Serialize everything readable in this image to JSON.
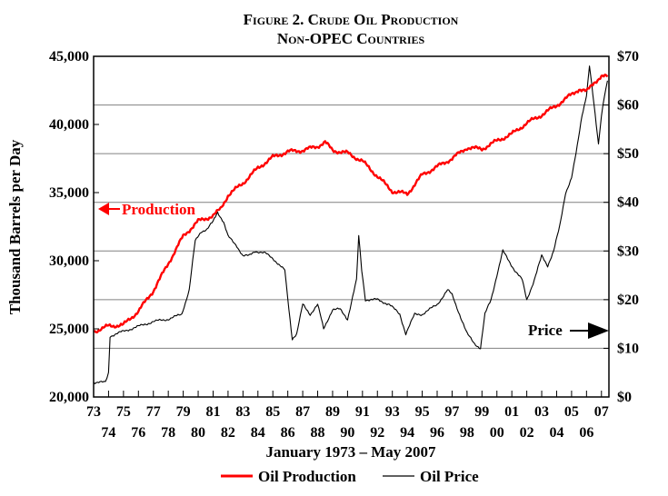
{
  "chart_data": {
    "type": "line",
    "title_line1": "Figure 2. Crude Oil Production",
    "title_line2": "Non-OPEC Countries",
    "xlabel": "January 1973 – May 2007",
    "ylabel": "Thousand Barrels per Day",
    "ylim": [
      20000,
      45000
    ],
    "y2lim": [
      0,
      70
    ],
    "xlim": [
      1973.0,
      2007.5
    ],
    "yticks": [
      "20,000",
      "25,000",
      "30,000",
      "35,000",
      "40,000",
      "45,000"
    ],
    "y2ticks": [
      "$0",
      "$10",
      "$20",
      "$30",
      "$40",
      "$50",
      "$60",
      "$70"
    ],
    "xticks_top": [
      "73",
      "75",
      "77",
      "79",
      "81",
      "83",
      "85",
      "87",
      "89",
      "91",
      "93",
      "95",
      "97",
      "99",
      "01",
      "03",
      "05",
      "07"
    ],
    "xticks_bottom": [
      "74",
      "76",
      "78",
      "80",
      "82",
      "84",
      "86",
      "88",
      "90",
      "92",
      "94",
      "96",
      "98",
      "00",
      "02",
      "04",
      "06"
    ],
    "annotations": {
      "production": "Production",
      "price": "Price"
    },
    "colors": {
      "production": "#ff0000",
      "price": "#000000",
      "grid": "#808080"
    },
    "legend": {
      "position": "bottom-center",
      "items": [
        "Oil Production",
        "Oil Price"
      ]
    },
    "series": [
      {
        "name": "Oil Production",
        "axis": "left",
        "x": [
          1973.0,
          1974.0,
          1975.0,
          1976.0,
          1977.0,
          1978.0,
          1979.0,
          1980.0,
          1981.0,
          1981.5,
          1982.0,
          1983.0,
          1984.0,
          1985.0,
          1986.0,
          1987.0,
          1988.0,
          1988.5,
          1989.0,
          1990.0,
          1991.0,
          1992.0,
          1993.0,
          1994.0,
          1995.0,
          1996.0,
          1997.0,
          1998.0,
          1999.0,
          2000.0,
          2001.0,
          2002.0,
          2003.0,
          2004.0,
          2005.0,
          2005.5,
          2006.0,
          2006.5,
          2007.0,
          2007.4
        ],
        "values": [
          24800,
          25200,
          25300,
          26300,
          27800,
          29800,
          31800,
          32900,
          33300,
          33800,
          34800,
          35700,
          36800,
          37600,
          38000,
          38100,
          38400,
          38700,
          38100,
          37900,
          37300,
          36200,
          35100,
          34900,
          36300,
          36900,
          37500,
          38300,
          38200,
          38800,
          39300,
          40100,
          40700,
          41400,
          42200,
          42600,
          42400,
          43100,
          43500,
          43500
        ]
      },
      {
        "name": "Oil Price",
        "axis": "right",
        "x": [
          1973.0,
          1973.6,
          1973.8,
          1974.0,
          1974.1,
          1975.0,
          1976.0,
          1977.0,
          1978.0,
          1978.9,
          1979.4,
          1979.8,
          1980.2,
          1980.6,
          1981.0,
          1981.3,
          1981.7,
          1982.0,
          1982.6,
          1983.0,
          1983.4,
          1983.8,
          1984.5,
          1985.0,
          1985.8,
          1986.0,
          1986.3,
          1986.6,
          1987.0,
          1987.5,
          1988.0,
          1988.4,
          1989.0,
          1989.5,
          1990.0,
          1990.6,
          1990.75,
          1990.95,
          1991.2,
          1992.0,
          1992.8,
          1993.5,
          1993.9,
          1994.5,
          1995.0,
          1996.0,
          1996.7,
          1997.0,
          1997.5,
          1998.0,
          1998.5,
          1998.9,
          1999.2,
          1999.6,
          2000.0,
          2000.4,
          2000.8,
          2001.2,
          2001.7,
          2002.0,
          2002.5,
          2003.0,
          2003.4,
          2003.8,
          2004.2,
          2004.6,
          2005.0,
          2005.3,
          2005.7,
          2006.0,
          2006.2,
          2006.5,
          2006.8,
          2007.0,
          2007.2,
          2007.4
        ],
        "values": [
          3,
          3,
          3,
          5,
          12.5,
          13.5,
          14.5,
          15.5,
          16,
          17,
          22,
          32,
          34,
          34.5,
          36,
          38,
          36,
          33,
          31,
          29,
          29,
          30,
          29.5,
          28.5,
          26,
          20,
          12,
          13,
          19,
          17,
          19,
          14,
          18,
          18,
          16,
          24,
          33,
          26,
          20,
          20,
          19,
          17,
          13,
          17,
          17,
          19,
          22,
          21,
          17,
          13,
          11,
          10,
          17,
          20,
          25,
          30,
          28,
          26,
          24,
          20,
          24,
          29,
          27,
          30,
          35,
          42,
          45,
          50,
          58,
          62,
          68,
          60,
          52,
          58,
          62,
          65
        ]
      }
    ]
  }
}
